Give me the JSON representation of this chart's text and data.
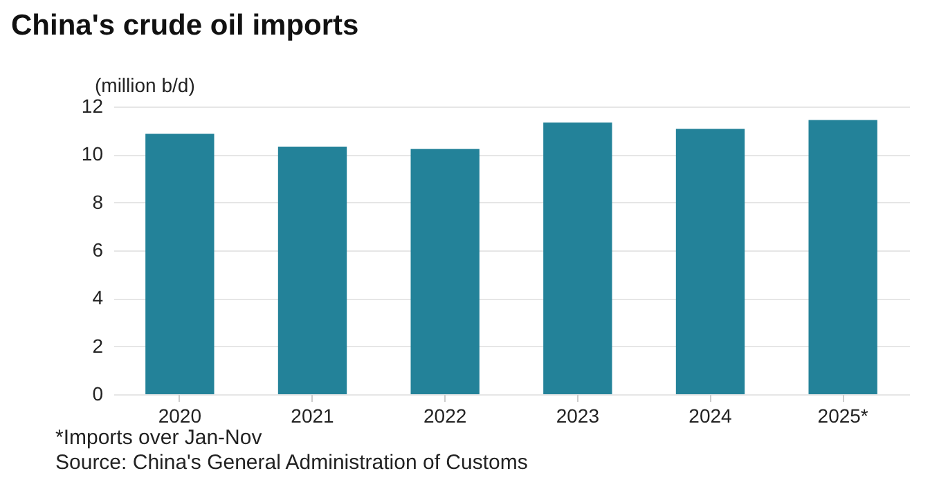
{
  "chart_data": {
    "type": "bar",
    "title": "China's crude oil imports",
    "ylabel": "(million b/d)",
    "categories": [
      "2020",
      "2021",
      "2022",
      "2023",
      "2024",
      "2025*"
    ],
    "values": [
      10.86,
      10.33,
      10.23,
      11.33,
      11.07,
      11.44
    ],
    "color": "#238299",
    "ylim": [
      0,
      12
    ],
    "yticks": [
      0,
      2,
      4,
      6,
      8,
      10,
      12
    ],
    "grid": "y",
    "annotations": [
      "*Imports over Jan-Nov",
      "Source: China's General Administration of Customs"
    ]
  }
}
